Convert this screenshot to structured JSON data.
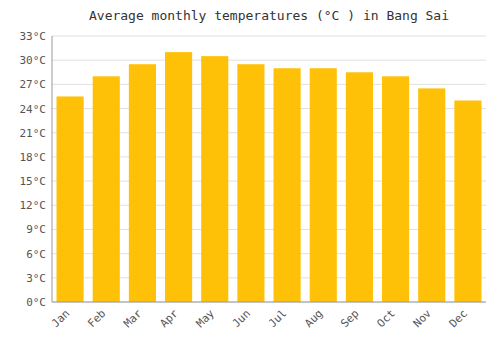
{
  "chart_data": {
    "type": "bar",
    "title": "Average monthly temperatures (°C ) in Bang Sai",
    "categories": [
      "Jan",
      "Feb",
      "Mar",
      "Apr",
      "May",
      "Jun",
      "Jul",
      "Aug",
      "Sep",
      "Oct",
      "Nov",
      "Dec"
    ],
    "values": [
      25.5,
      28.0,
      29.5,
      31.0,
      30.5,
      29.5,
      29.0,
      29.0,
      28.5,
      28.0,
      26.5,
      25.0
    ],
    "color": "#FFC107",
    "ylim": [
      0,
      33
    ],
    "yticks": [
      {
        "value": 0,
        "label": "0°C"
      },
      {
        "value": 3,
        "label": "3°C"
      },
      {
        "value": 6,
        "label": "6°C"
      },
      {
        "value": 9,
        "label": "9°C"
      },
      {
        "value": 12,
        "label": "12°C"
      },
      {
        "value": 15,
        "label": "15°C"
      },
      {
        "value": 18,
        "label": "18°C"
      },
      {
        "value": 21,
        "label": "21°C"
      },
      {
        "value": 24,
        "label": "24°C"
      },
      {
        "value": 27,
        "label": "27°C"
      },
      {
        "value": 30,
        "label": "30°C"
      },
      {
        "value": 33,
        "label": "33°C"
      }
    ],
    "grid": true
  }
}
